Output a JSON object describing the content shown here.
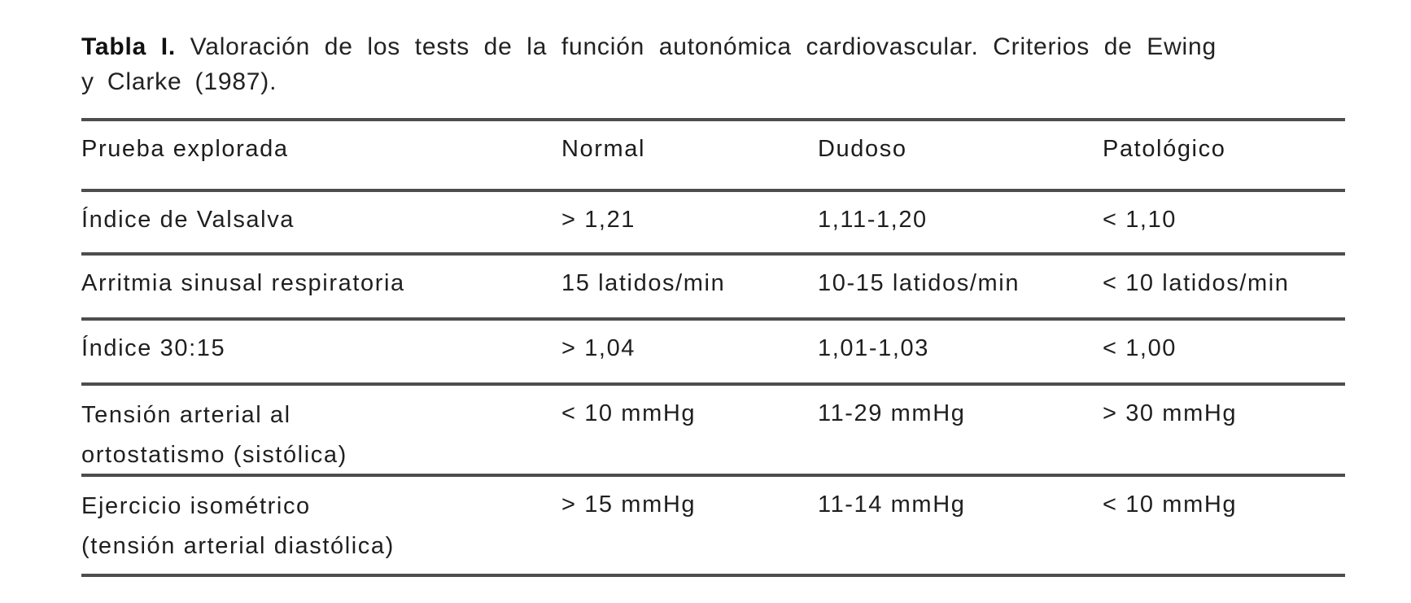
{
  "title": {
    "label": "Tabla I.",
    "text": " Valoración de los tests de la función autonómica cardiovascular. Criterios de Ewing y Clarke (1987)."
  },
  "table": {
    "columns": [
      "Prueba explorada",
      "Normal",
      "Dudoso",
      "Patológico"
    ],
    "rows": [
      {
        "prueba": "Índice de Valsalva",
        "normal": "> 1,21",
        "dudoso": "1,11-1,20",
        "patologico": "< 1,10"
      },
      {
        "prueba": "Arritmia sinusal respiratoria",
        "normal": "15 latidos/min",
        "dudoso": "10-15 latidos/min",
        "patologico": "< 10 latidos/min"
      },
      {
        "prueba": "Índice 30:15",
        "normal": "> 1,04",
        "dudoso": "1,01-1,03",
        "patologico": "< 1,00"
      },
      {
        "prueba_line1": "Tensión arterial al",
        "prueba_line2": "ortostatismo (sistólica)",
        "normal": "< 10 mmHg",
        "dudoso": "11-29 mmHg",
        "patologico": "> 30 mmHg"
      },
      {
        "prueba_line1": "Ejercicio isométrico",
        "prueba_line2": "(tensión arterial diastólica)",
        "normal": "> 15 mmHg",
        "dudoso": "11-14 mmHg",
        "patologico": "< 10 mmHg"
      }
    ]
  },
  "colors": {
    "rule": "#4d4d4d",
    "text": "#1f1f1f",
    "background": "#ffffff"
  }
}
